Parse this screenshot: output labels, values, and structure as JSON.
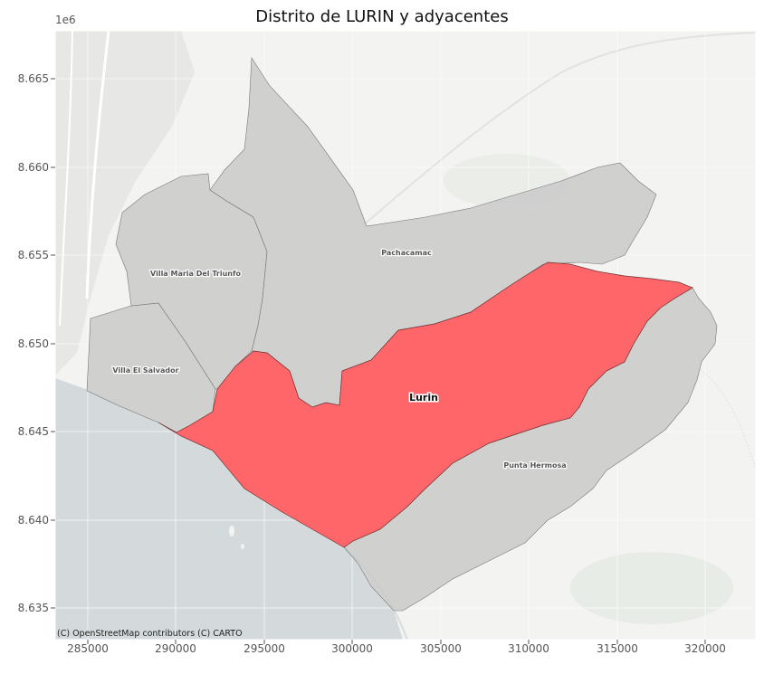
{
  "title": "Distrito de LURIN y adyacentes",
  "axis": {
    "y_multiplier": "1e6",
    "y_ticks": [
      "8.665",
      "8.660",
      "8.655",
      "8.650",
      "8.645",
      "8.640",
      "8.635"
    ],
    "x_ticks": [
      "285000",
      "290000",
      "295000",
      "300000",
      "305000",
      "310000",
      "315000",
      "320000"
    ]
  },
  "labels": {
    "target": "Lurin",
    "vms": "Villa Maria Del Triunfo",
    "ves": "Villa El Salvador",
    "pachacamac": "Pachacamac",
    "punta_hermosa": "Punta Hermosa"
  },
  "attribution": "(C) OpenStreetMap contributors (C) CARTO",
  "colors": {
    "highlight": "#ff5a5e",
    "neighbor": "#c9c9c9",
    "sea": "#d4dadc",
    "land": "#f3f3f1"
  }
}
